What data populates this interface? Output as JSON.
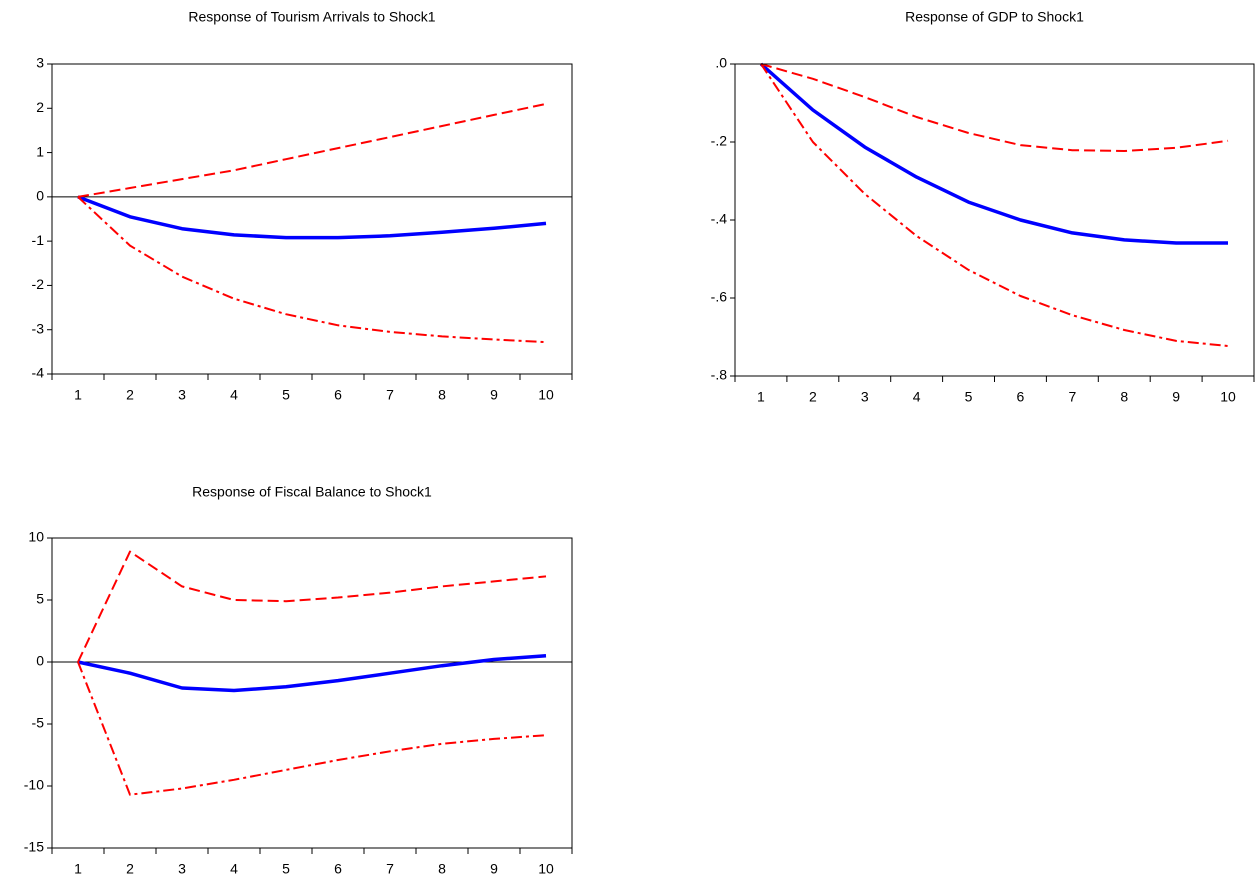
{
  "chart_data": [
    {
      "type": "line",
      "title": "Response of Tourism Arrivals to Shock1",
      "categories": [
        1,
        2,
        3,
        4,
        5,
        6,
        7,
        8,
        9,
        10
      ],
      "ylim": [
        -4,
        3
      ],
      "yticks": [
        3,
        2,
        1,
        0,
        -1,
        -2,
        -3,
        -4
      ],
      "zero_line": true,
      "series": [
        {
          "color": "#0000ff",
          "style": "solid",
          "values": [
            0,
            -0.45,
            -0.72,
            -0.86,
            -0.92,
            -0.92,
            -0.88,
            -0.8,
            -0.71,
            -0.6
          ]
        },
        {
          "color": "#ff0000",
          "style": "dashed",
          "values": [
            0,
            0.2,
            0.4,
            0.6,
            0.85,
            1.1,
            1.35,
            1.6,
            1.85,
            2.1
          ]
        },
        {
          "color": "#ff0000",
          "style": "dashdot",
          "values": [
            0,
            -1.1,
            -1.8,
            -2.3,
            -2.65,
            -2.9,
            -3.05,
            -3.15,
            -3.22,
            -3.28
          ]
        }
      ]
    },
    {
      "type": "line",
      "title": "Response of GDP to Shock1",
      "categories": [
        1,
        2,
        3,
        4,
        5,
        6,
        7,
        8,
        9,
        10
      ],
      "ylim": [
        -0.8,
        0
      ],
      "yticks": [
        {
          "value": 0,
          "label": ".0"
        },
        {
          "value": -0.2,
          "label": "-.2"
        },
        {
          "value": -0.4,
          "label": "-.4"
        },
        {
          "value": -0.6,
          "label": "-.6"
        },
        {
          "value": -0.8,
          "label": "-.8"
        }
      ],
      "zero_line": true,
      "series": [
        {
          "color": "#0000ff",
          "style": "solid",
          "values": [
            0,
            -0.118,
            -0.213,
            -0.29,
            -0.354,
            -0.4,
            -0.433,
            -0.451,
            -0.459,
            -0.459
          ]
        },
        {
          "color": "#ff0000",
          "style": "dashed",
          "values": [
            0,
            -0.038,
            -0.085,
            -0.136,
            -0.177,
            -0.208,
            -0.221,
            -0.223,
            -0.215,
            -0.197
          ]
        },
        {
          "color": "#ff0000",
          "style": "dashdot",
          "values": [
            0,
            -0.2,
            -0.333,
            -0.441,
            -0.528,
            -0.595,
            -0.644,
            -0.682,
            -0.71,
            -0.723
          ]
        }
      ]
    },
    {
      "type": "line",
      "title": "Response of Fiscal Balance to Shock1",
      "categories": [
        1,
        2,
        3,
        4,
        5,
        6,
        7,
        8,
        9,
        10
      ],
      "ylim": [
        -15,
        10
      ],
      "yticks": [
        10,
        5,
        0,
        -5,
        -10,
        -15
      ],
      "zero_line": true,
      "series": [
        {
          "color": "#0000ff",
          "style": "solid",
          "values": [
            0,
            -0.9,
            -2.1,
            -2.3,
            -2.0,
            -1.5,
            -0.9,
            -0.3,
            0.2,
            0.5
          ]
        },
        {
          "color": "#ff0000",
          "style": "dashed",
          "values": [
            0,
            8.9,
            6.1,
            5.0,
            4.9,
            5.2,
            5.6,
            6.1,
            6.5,
            6.9
          ]
        },
        {
          "color": "#ff0000",
          "style": "dashdot",
          "values": [
            0,
            -10.7,
            -10.2,
            -9.5,
            -8.7,
            -7.9,
            -7.2,
            -6.6,
            -6.2,
            -5.9
          ]
        }
      ]
    }
  ]
}
